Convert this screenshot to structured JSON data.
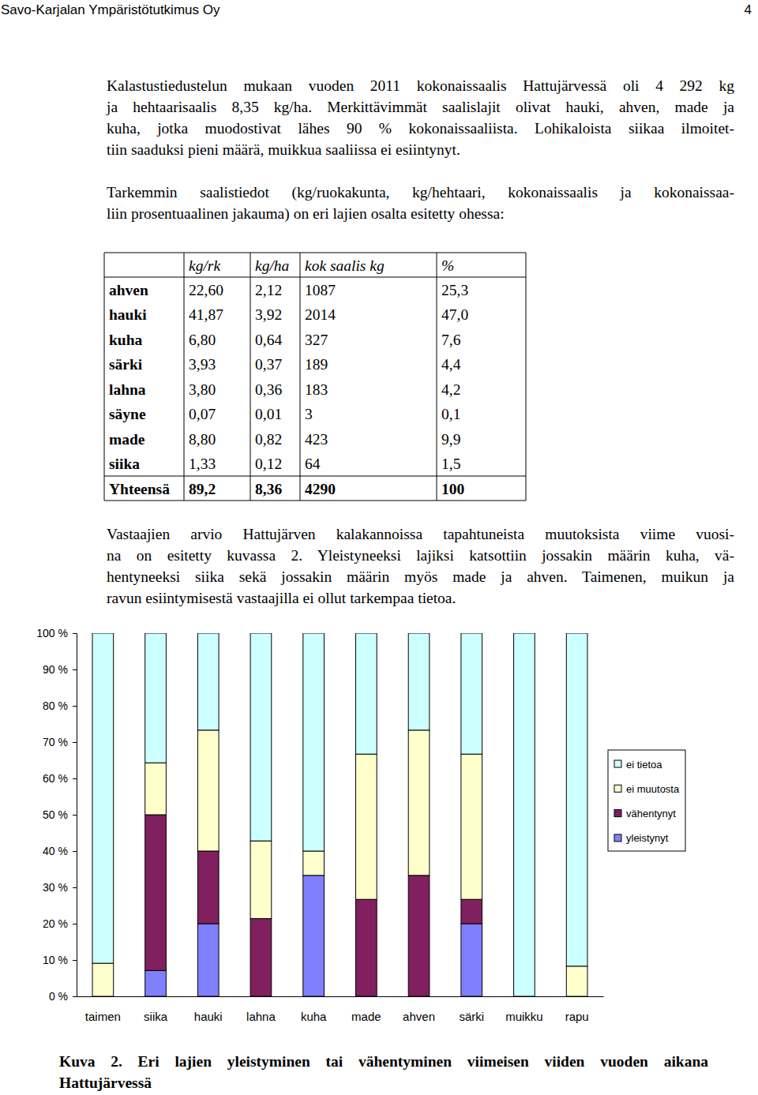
{
  "header": {
    "left": "Savo-Karjalan Ympäristötutkimus Oy",
    "right": "4"
  },
  "paragraph1": [
    "Kalastustiedustelun mukaan vuoden 2011 kokonaissaalis Hattujärvessä oli 4 292 kg",
    "ja hehtaarisaalis 8,35 kg/ha. Merkittävimmät saalislajit olivat hauki, ahven, made ja",
    "kuha, jotka muodostivat lähes 90 % kokonaissaaliista. Lohikaloista siikaa ilmoitet-",
    "tiin saaduksi pieni määrä, muikkua saaliissa ei esiintynyt."
  ],
  "paragraph2": [
    "Tarkemmin saalistiedot (kg/ruokakunta, kg/hehtaari, kokonaissaalis ja kokonaissaa-",
    "liin prosentuaalinen jakauma) on eri lajien osalta esitetty ohessa:"
  ],
  "table": {
    "header": [
      "kg/rk",
      "kg/ha",
      "kok saalis kg",
      "%"
    ],
    "rows": [
      [
        "ahven",
        "22,60",
        "2,12",
        "1087",
        "25,3"
      ],
      [
        "hauki",
        "41,87",
        "3,92",
        "2014",
        "47,0"
      ],
      [
        "kuha",
        "6,80",
        "0,64",
        "327",
        "7,6"
      ],
      [
        "särki",
        "3,93",
        "0,37",
        "189",
        "4,4"
      ],
      [
        "lahna",
        "3,80",
        "0,36",
        "183",
        "4,2"
      ],
      [
        "säyne",
        "0,07",
        "0,01",
        "3",
        "0,1"
      ],
      [
        "made",
        "8,80",
        "0,82",
        "423",
        "9,9"
      ],
      [
        "siika",
        "1,33",
        "0,12",
        "64",
        "1,5"
      ]
    ],
    "total": [
      "Yhteensä",
      "89,2",
      "8,36",
      "4290",
      "100"
    ]
  },
  "paragraph3": [
    "Vastaajien arvio Hattujärven kalakannoissa tapahtuneista muutoksista viime vuosi-",
    "na on esitetty kuvassa 2. Yleistyneeksi lajiksi katsottiin jossakin määrin kuha, vä-",
    "hentyneeksi siika sekä jossakin määrin myös made ja ahven. Taimenen, muikun ja",
    "ravun esiintymisestä vastaajilla ei ollut tarkempaa tietoa."
  ],
  "chart_data": {
    "type": "bar",
    "stacked": true,
    "grid": false,
    "legend": "right",
    "categories": [
      "taimen",
      "siika",
      "hauki",
      "lahna",
      "kuha",
      "made",
      "ahven",
      "särki",
      "muikku",
      "rapu"
    ],
    "series": [
      {
        "name": "yleistynyt",
        "color": "#8080ff",
        "values": [
          0,
          7.1,
          20,
          0,
          33.3,
          0,
          0,
          20,
          0,
          0
        ]
      },
      {
        "name": "vähentynyt",
        "color": "#80205f",
        "values": [
          0,
          42.9,
          20,
          21.4,
          0,
          26.7,
          33.3,
          6.7,
          0,
          0
        ]
      },
      {
        "name": "ei muutosta",
        "color": "#ffffcc",
        "values": [
          9.1,
          14.3,
          33.3,
          21.4,
          6.7,
          40,
          40,
          40,
          0,
          8.3
        ]
      },
      {
        "name": "ei tietoa",
        "color": "#ccffff",
        "values": [
          90.9,
          35.7,
          26.7,
          57.2,
          60,
          33.3,
          26.7,
          33.3,
          100,
          91.7
        ]
      }
    ],
    "ylim": [
      0,
      100
    ],
    "yticks": [
      {
        "value": 0,
        "label": "0 %"
      },
      {
        "value": 10,
        "label": "10 %"
      },
      {
        "value": 20,
        "label": "20 %"
      },
      {
        "value": 30,
        "label": "30 %"
      },
      {
        "value": 40,
        "label": "40 %"
      },
      {
        "value": 50,
        "label": "50 %"
      },
      {
        "value": 60,
        "label": "60 %"
      },
      {
        "value": 70,
        "label": "70 %"
      },
      {
        "value": 80,
        "label": "80 %"
      },
      {
        "value": 90,
        "label": "90 %"
      },
      {
        "value": 100,
        "label": "100 %"
      }
    ]
  },
  "caption": [
    "Kuva 2. Eri lajien yleistyminen tai vähentyminen viimeisen viiden vuoden aikana",
    "Hattujärvessä"
  ]
}
